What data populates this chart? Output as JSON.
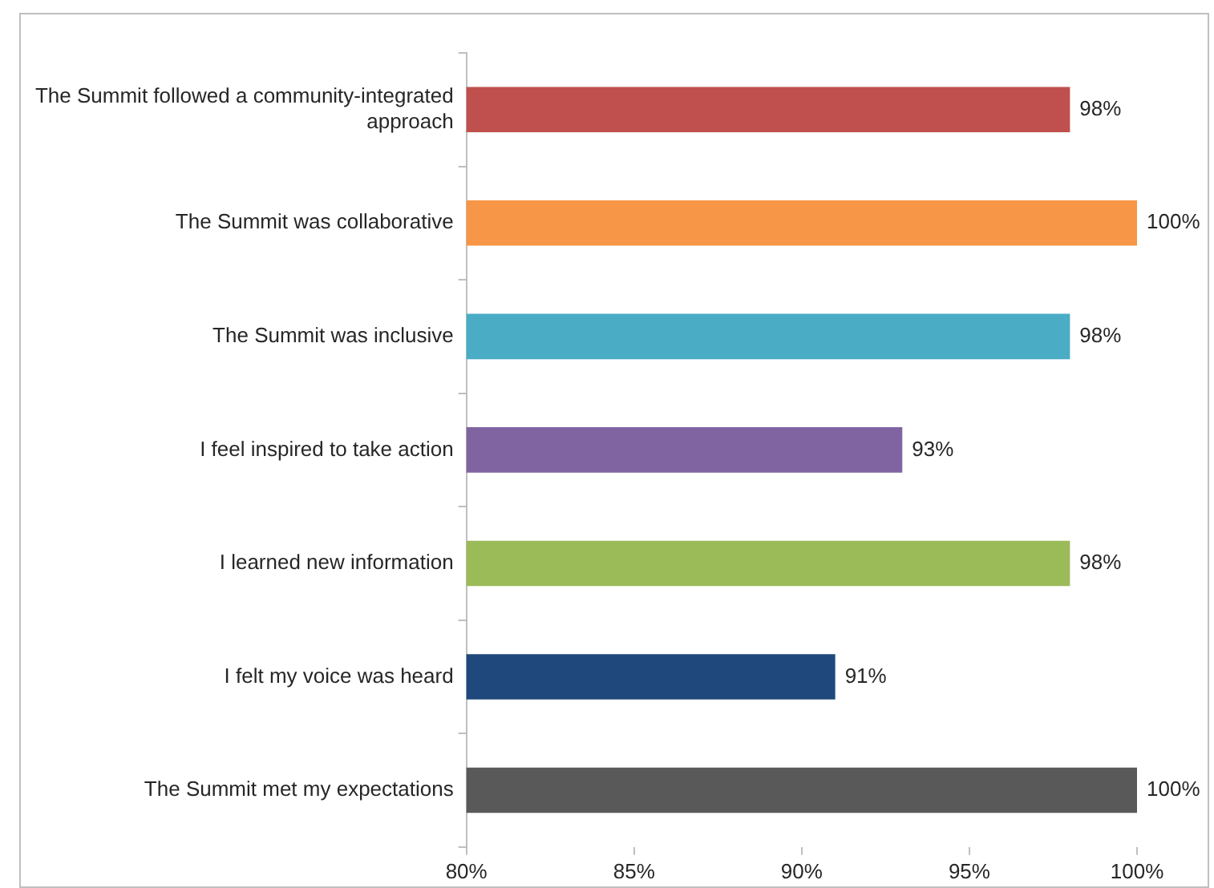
{
  "chart_data": {
    "type": "bar",
    "orientation": "horizontal",
    "categories": [
      "The Summit followed a community-integrated approach",
      "The Summit was collaborative",
      "The Summit was inclusive",
      "I feel inspired to take action",
      "I learned new information",
      "I felt my voice was heard",
      "The Summit met my expectations"
    ],
    "values": [
      98,
      100,
      98,
      93,
      98,
      91,
      100
    ],
    "colors": [
      "#c0504d",
      "#f79646",
      "#4bacc6",
      "#8064a2",
      "#9bbb59",
      "#1f497d",
      "#595959"
    ],
    "value_labels": [
      "98%",
      "100%",
      "98%",
      "93%",
      "98%",
      "91%",
      "100%"
    ],
    "xlim": [
      80,
      100
    ],
    "xticks": [
      {
        "value": 80,
        "label": "80%"
      },
      {
        "value": 85,
        "label": "85%"
      },
      {
        "value": 90,
        "label": "90%"
      },
      {
        "value": 95,
        "label": "95%"
      },
      {
        "value": 100,
        "label": "100%"
      }
    ],
    "grid": false,
    "legend": false
  }
}
